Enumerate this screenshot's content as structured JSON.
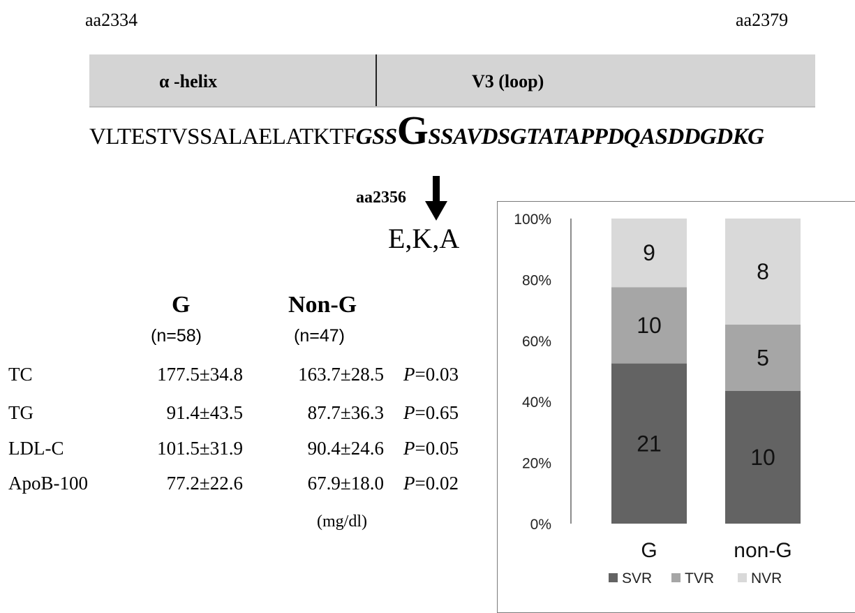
{
  "domain": {
    "start_aa": "aa2334",
    "end_aa": "aa2379",
    "alpha_helix_label": "α -helix",
    "v3_label": "V3  (loop)"
  },
  "sequence": {
    "plain": "VLTESTVSSALAELATKTF",
    "italic_before": "GSS",
    "site": "G",
    "italic_after": "SSAVDSGTATAPPDQASDDGDKG"
  },
  "mutation": {
    "position": "aa2356",
    "substitutions": "E,K,A"
  },
  "table": {
    "columns": [
      {
        "label": "G",
        "n": "(n=58)"
      },
      {
        "label": "Non-G",
        "n": "(n=47)"
      }
    ],
    "rows": [
      {
        "name": "TC",
        "g": "177.5±34.8",
        "nong": "163.7±28.5",
        "p_label": "P",
        "p_value": "=0.03"
      },
      {
        "name": "TG",
        "g": "91.4±43.5",
        "nong": "87.7±36.3",
        "p_label": "P",
        "p_value": "=0.65"
      },
      {
        "name": "LDL-C",
        "g": "101.5±31.9",
        "nong": "90.4±24.6",
        "p_label": "P",
        "p_value": "=0.05"
      },
      {
        "name": "ApoB-100",
        "g": "77.2±22.6",
        "nong": "67.9±18.0",
        "p_label": "P",
        "p_value": "=0.02"
      }
    ],
    "unit": "(mg/dl)"
  },
  "chart_data": {
    "type": "bar",
    "stacked": "percent",
    "categories": [
      "G",
      "non-G"
    ],
    "series": [
      {
        "name": "SVR",
        "values": [
          21,
          10
        ],
        "color": "#636363"
      },
      {
        "name": "TVR",
        "values": [
          10,
          5
        ],
        "color": "#a6a6a6"
      },
      {
        "name": "NVR",
        "values": [
          9,
          8
        ],
        "color": "#d9d9d9"
      }
    ],
    "ylim": [
      0,
      100
    ],
    "yticks": [
      "0%",
      "20%",
      "40%",
      "60%",
      "80%",
      "100%"
    ],
    "legend_position": "bottom",
    "grid": false
  }
}
